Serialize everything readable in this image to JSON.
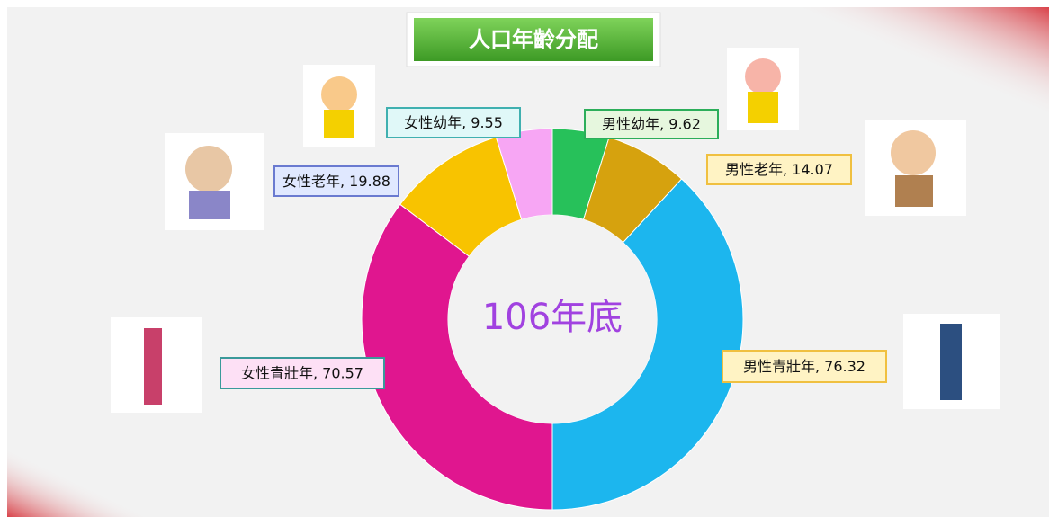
{
  "chart_data": {
    "type": "donut",
    "title": "人口年齡分配",
    "center_label": "106年底",
    "values": [
      9.62,
      14.07,
      76.32,
      70.57,
      19.88,
      9.55
    ],
    "value_labels": [
      "男性幼年, 9.62",
      "男性老年, 14.07",
      "男性青壯年, 76.32",
      "女性青壯年, 70.57",
      "女性老年, 19.88",
      "女性幼年, 9.55"
    ],
    "colors": [
      "#27c15a",
      "#d6a20e",
      "#1cb6ee",
      "#e0168f",
      "#f8c300",
      "#f7a6f4"
    ]
  }
}
